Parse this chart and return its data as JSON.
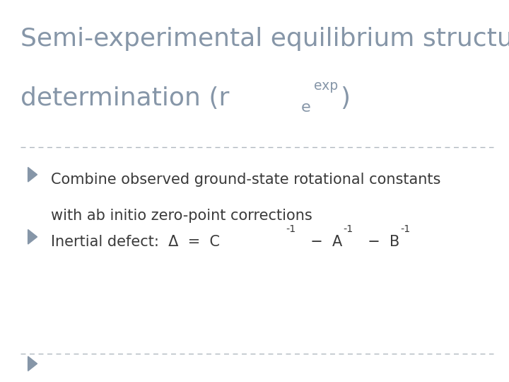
{
  "title_line1": "Semi-experimental equilibrium structure",
  "title_line2_base": "determination (r",
  "title_subscript": "e",
  "title_superscript": "exp",
  "title_line2_end": ")",
  "title_color": "#8696a8",
  "title_fontsize": 26,
  "bullet_color": "#8696a8",
  "text_color": "#3a3a3a",
  "text_fontsize": 15,
  "bullet1_line1": "Combine observed ground-state rotational constants",
  "bullet1_line2": "with ab initio zero-point corrections",
  "bullet2_base": "Inertial defect:  Δ  =  C",
  "bullet2_mid1": "  −  A",
  "bullet2_mid2": "  −  B",
  "superscript": "-1",
  "dashed_line_color": "#b0b8c0",
  "background_color": "#ffffff"
}
